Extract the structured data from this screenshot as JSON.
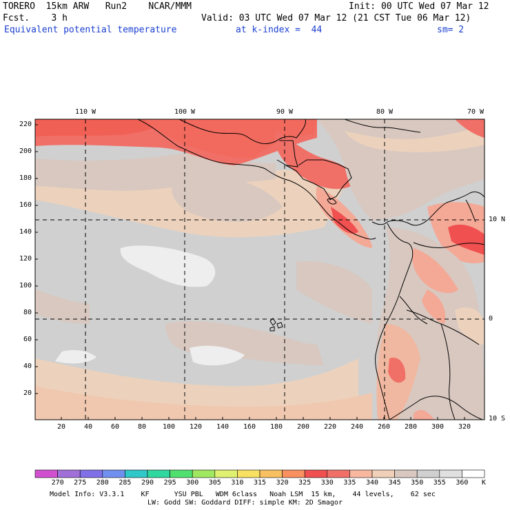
{
  "header": {
    "model": "TORERO",
    "resolution": "15km ARW",
    "run": "Run2",
    "org": "NCAR/MMM",
    "init": "Init: 00 UTC Wed 07 Mar 12",
    "fcst_label": "Fcst.",
    "fcst_value": "3 h",
    "valid": "Valid: 03 UTC Wed 07 Mar 12 (21 CST Tue 06 Mar 12)",
    "field": "Equivalent potential temperature",
    "level": "at k-index =  44",
    "smoothing": "sm= 2"
  },
  "map": {
    "lon_labels": [
      "110 W",
      "100 W",
      "90 W",
      "80 W",
      "70 W"
    ],
    "lat_labels": [
      "10 N",
      "0",
      "10 S"
    ],
    "y_ticks": [
      "220",
      "200",
      "180",
      "160",
      "140",
      "120",
      "100",
      "80",
      "60",
      "40",
      "20"
    ],
    "x_ticks": [
      "20",
      "40",
      "60",
      "80",
      "100",
      "120",
      "140",
      "160",
      "180",
      "200",
      "220",
      "240",
      "260",
      "280",
      "300",
      "320"
    ]
  },
  "colorbar": {
    "labels": [
      "270",
      "275",
      "280",
      "285",
      "290",
      "295",
      "300",
      "305",
      "310",
      "315",
      "320",
      "325",
      "330",
      "335",
      "340",
      "345",
      "350",
      "355",
      "360"
    ],
    "unit": "K",
    "colors": [
      "#d050d0",
      "#a070d8",
      "#8070e8",
      "#7090f0",
      "#30c8c8",
      "#30d8a0",
      "#50e070",
      "#a0e860",
      "#e0f070",
      "#f8e060",
      "#f8c060",
      "#f89060",
      "#f05050",
      "#f07068",
      "#f8b8a0",
      "#f0d0b8",
      "#d8c8c0",
      "#d0d0d0",
      "#e0e0e0",
      "#ffffff"
    ]
  },
  "footer": {
    "line1": "Model Info: V3.3.1    KF      YSU PBL   WDM 6class   Noah LSM  15 km,    44 levels,    62 sec",
    "line2": "LW: Godd SW: Goddard DIFF: simple KM: 2D Smagor"
  }
}
